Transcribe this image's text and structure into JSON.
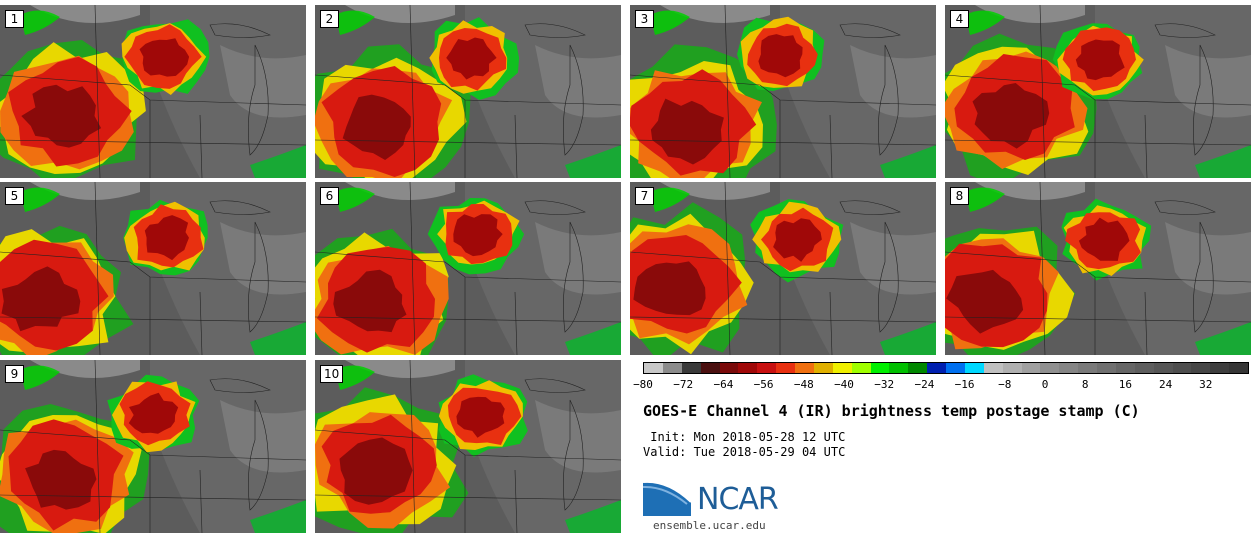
{
  "panels": [
    {
      "label": "1",
      "seed": 11
    },
    {
      "label": "2",
      "seed": 23
    },
    {
      "label": "3",
      "seed": 37
    },
    {
      "label": "4",
      "seed": 41
    },
    {
      "label": "5",
      "seed": 53
    },
    {
      "label": "6",
      "seed": 67
    },
    {
      "label": "7",
      "seed": 71
    },
    {
      "label": "8",
      "seed": 83
    },
    {
      "label": "9",
      "seed": 97
    },
    {
      "label": "10",
      "seed": 109
    }
  ],
  "colorbar": {
    "colors": [
      "#c8c8c8",
      "#8c8c8c",
      "#3a3a3a",
      "#4b1010",
      "#7a0a0a",
      "#a00808",
      "#c81010",
      "#e83010",
      "#f07010",
      "#e0b000",
      "#f0f000",
      "#a0ff00",
      "#00f000",
      "#00c000",
      "#008800",
      "#0020b0",
      "#0070f0",
      "#00d8ff",
      "#c0c0c0",
      "#b0b0b0",
      "#a0a0a0",
      "#909090",
      "#858585",
      "#7a7a7a",
      "#707070",
      "#666666",
      "#5e5e5e",
      "#565656",
      "#4e4e4e",
      "#464646",
      "#3e3e3e",
      "#363636"
    ],
    "tick_labels": [
      "−80",
      "−72",
      "−64",
      "−56",
      "−48",
      "−40",
      "−32",
      "−24",
      "−16",
      "−8",
      "0",
      "8",
      "16",
      "24",
      "32"
    ]
  },
  "title": "GOES-E Channel 4 (IR) brightness temp postage stamp (C)",
  "init": " Init: Mon 2018-05-28 12 UTC",
  "valid": "Valid: Tue 2018-05-29 04 UTC",
  "logo_text": "NCAR",
  "url": "ensemble.ucar.edu"
}
